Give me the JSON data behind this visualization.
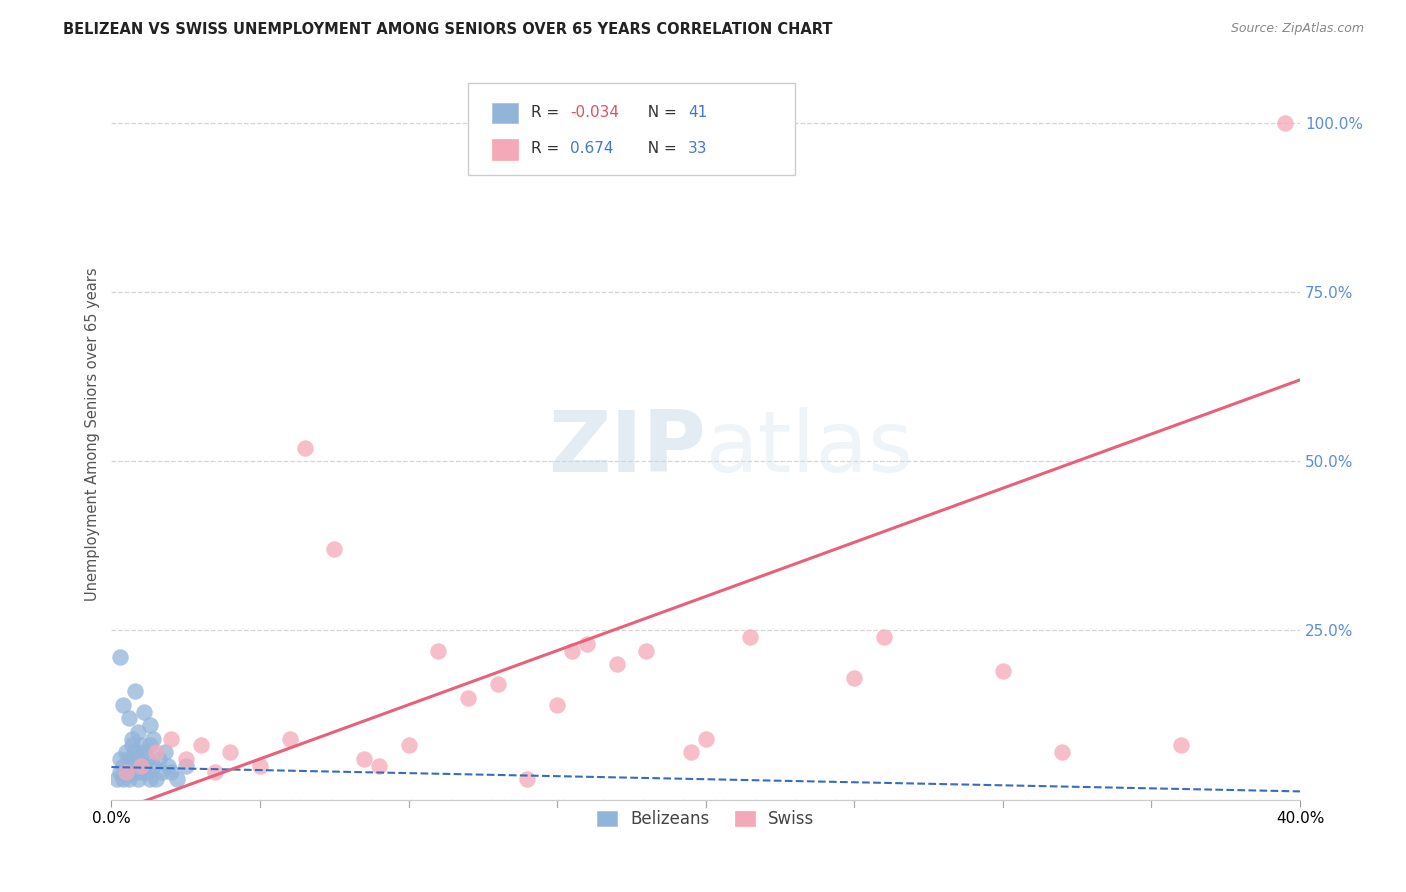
{
  "title": "BELIZEAN VS SWISS UNEMPLOYMENT AMONG SENIORS OVER 65 YEARS CORRELATION CHART",
  "source": "Source: ZipAtlas.com",
  "ylabel": "Unemployment Among Seniors over 65 years",
  "xlim": [
    0.0,
    0.4
  ],
  "ylim": [
    0.0,
    1.08
  ],
  "xticks": [
    0.0,
    0.05,
    0.1,
    0.15,
    0.2,
    0.25,
    0.3,
    0.35,
    0.4
  ],
  "yticks": [
    0.0,
    0.25,
    0.5,
    0.75,
    1.0
  ],
  "belizean_R": "-0.034",
  "belizean_N": "41",
  "swiss_R": "0.674",
  "swiss_N": "33",
  "belizean_color": "#92b4d9",
  "swiss_color": "#f4a8b8",
  "belizean_line_color": "#3a6bbf",
  "swiss_line_color": "#e8607a",
  "background_color": "#ffffff",
  "belizean_label": "Belizeans",
  "swiss_label": "Swiss",
  "belizean_x": [
    0.002,
    0.003,
    0.003,
    0.004,
    0.004,
    0.005,
    0.005,
    0.006,
    0.006,
    0.007,
    0.007,
    0.008,
    0.008,
    0.009,
    0.009,
    0.01,
    0.01,
    0.011,
    0.011,
    0.012,
    0.012,
    0.013,
    0.013,
    0.014,
    0.014,
    0.015,
    0.016,
    0.017,
    0.018,
    0.019,
    0.02,
    0.022,
    0.025,
    0.003,
    0.004,
    0.006,
    0.008,
    0.009,
    0.011,
    0.007,
    0.013
  ],
  "belizean_y": [
    0.03,
    0.04,
    0.06,
    0.03,
    0.05,
    0.04,
    0.07,
    0.03,
    0.06,
    0.05,
    0.08,
    0.04,
    0.07,
    0.03,
    0.06,
    0.04,
    0.08,
    0.05,
    0.07,
    0.04,
    0.06,
    0.03,
    0.08,
    0.05,
    0.09,
    0.03,
    0.06,
    0.04,
    0.07,
    0.05,
    0.04,
    0.03,
    0.05,
    0.21,
    0.14,
    0.12,
    0.16,
    0.1,
    0.13,
    0.09,
    0.11
  ],
  "swiss_x": [
    0.005,
    0.01,
    0.015,
    0.02,
    0.025,
    0.03,
    0.035,
    0.04,
    0.05,
    0.06,
    0.065,
    0.075,
    0.085,
    0.09,
    0.1,
    0.11,
    0.12,
    0.13,
    0.14,
    0.15,
    0.155,
    0.16,
    0.17,
    0.18,
    0.195,
    0.2,
    0.215,
    0.25,
    0.26,
    0.3,
    0.32,
    0.36,
    0.395
  ],
  "swiss_y": [
    0.04,
    0.05,
    0.07,
    0.09,
    0.06,
    0.08,
    0.04,
    0.07,
    0.05,
    0.09,
    0.52,
    0.37,
    0.06,
    0.05,
    0.08,
    0.22,
    0.15,
    0.17,
    0.03,
    0.14,
    0.22,
    0.23,
    0.2,
    0.22,
    0.07,
    0.09,
    0.24,
    0.18,
    0.24,
    0.19,
    0.07,
    0.08,
    1.0
  ],
  "belizean_trend_x": [
    0.0,
    0.4
  ],
  "belizean_trend_y": [
    0.048,
    0.012
  ],
  "swiss_trend_x": [
    0.0,
    0.4
  ],
  "swiss_trend_y": [
    -0.02,
    0.62
  ]
}
